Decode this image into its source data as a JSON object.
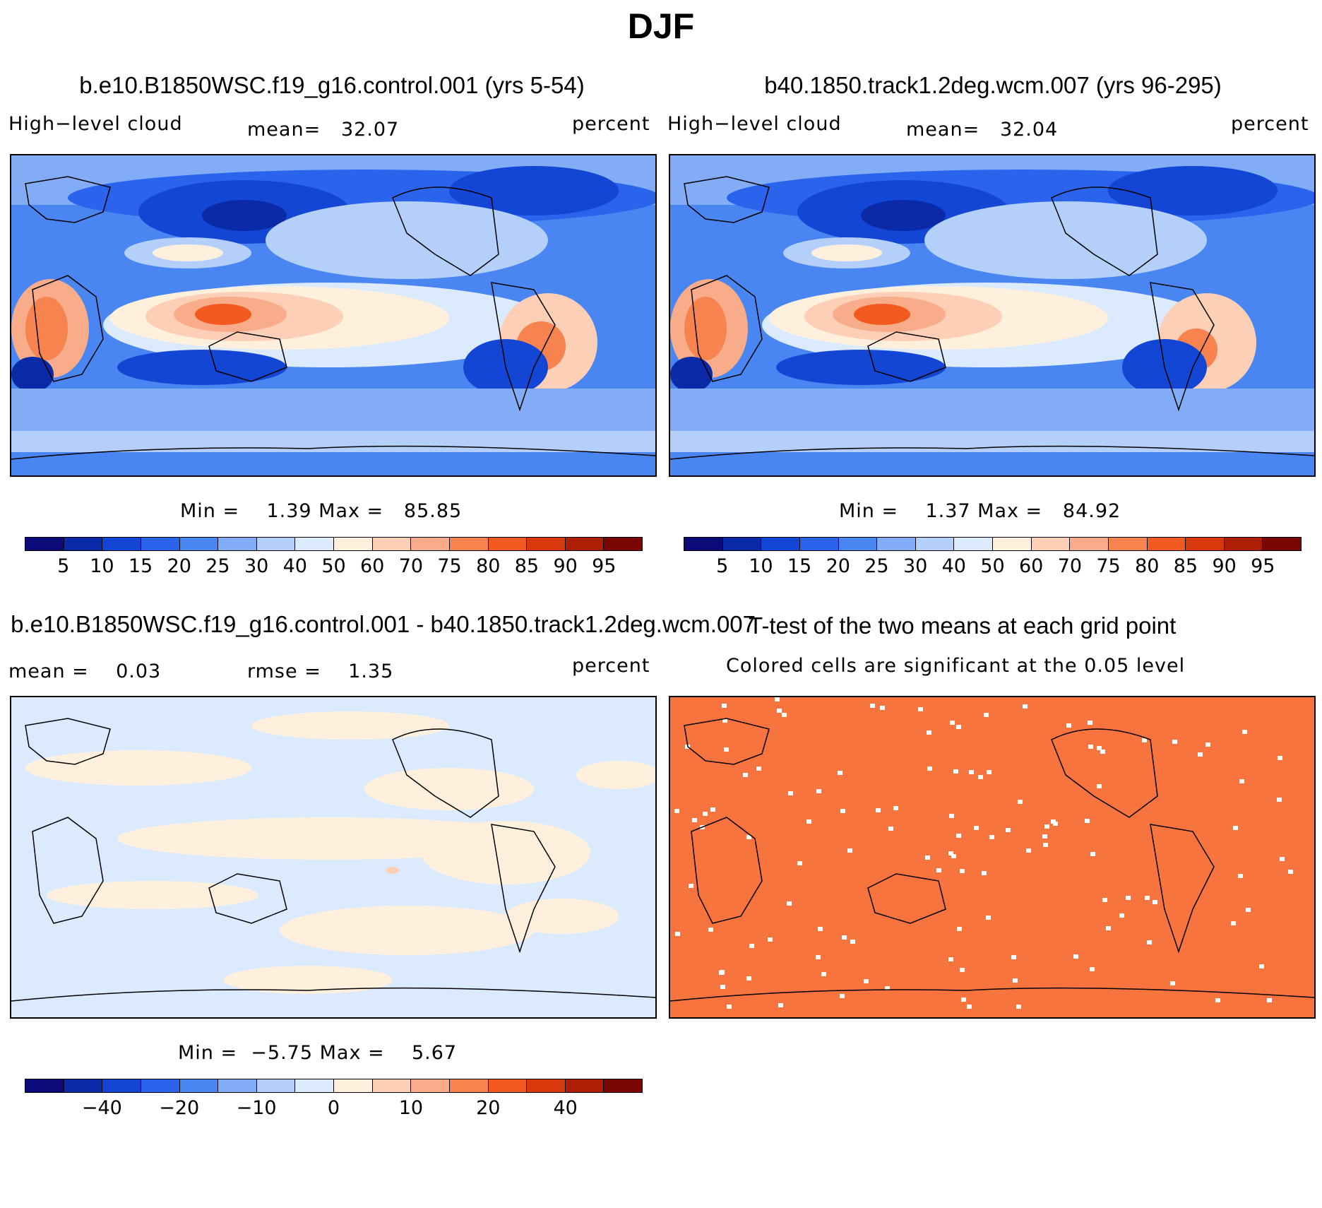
{
  "title": "DJF",
  "variable_label": "High−level cloud",
  "units_label": "percent",
  "panels": [
    {
      "title": "b.e10.B1850WSC.f19_g16.control.001 (yrs 5-54)",
      "mean_label": "mean=   32.07",
      "minmax_label": "Min =    1.39 Max =   85.85"
    },
    {
      "title": "b40.1850.track1.2deg.wcm.007 (yrs 96-295)",
      "mean_label": "mean=   32.04",
      "minmax_label": "Min =    1.37 Max =   84.92"
    },
    {
      "title": "b.e10.B1850WSC.f19_g16.control.001 - b40.1850.track1.2deg.wcm.007",
      "mean_label": "mean =    0.03",
      "rmse_label": "rmse =    1.35",
      "minmax_label": "Min =  −5.75 Max =    5.67"
    },
    {
      "title": "T-test of the two means at each grid point",
      "subtitle": "Colored cells are significant at the 0.05 level"
    }
  ],
  "colorbar_abs": {
    "colors": [
      "#0a0a78",
      "#0a2aa8",
      "#1446d6",
      "#2a64ec",
      "#4a86f2",
      "#82acf6",
      "#b4cffa",
      "#dceafe",
      "#fff0de",
      "#fccfb6",
      "#f9ac8a",
      "#f7844f",
      "#f25a20",
      "#d8390c",
      "#ac1f06",
      "#7a0606"
    ],
    "tick_labels": [
      "5",
      "10",
      "15",
      "20",
      "25",
      "30",
      "40",
      "50",
      "60",
      "70",
      "75",
      "80",
      "85",
      "90",
      "95"
    ]
  },
  "colorbar_diff": {
    "colors": [
      "#0a0a78",
      "#0a2aa8",
      "#1446d6",
      "#2a64ec",
      "#4a86f2",
      "#82acf6",
      "#b4cffa",
      "#dceafe",
      "#fff0de",
      "#fccfb6",
      "#f9ac8a",
      "#f7844f",
      "#f25a20",
      "#d8390c",
      "#ac1f06",
      "#7a0606"
    ],
    "tick_labels": [
      "−40",
      "−20",
      "−10",
      "0",
      "10",
      "20",
      "40"
    ]
  },
  "chart_data": [
    {
      "type": "heatmap",
      "title": "b.e10.B1850WSC.f19_g16.control.001 (yrs 5-54)",
      "variable": "High-level cloud",
      "units": "percent",
      "mean": 32.07,
      "min": 1.39,
      "max": 85.85,
      "contour_levels": [
        5,
        10,
        15,
        20,
        25,
        30,
        40,
        50,
        60,
        70,
        75,
        80,
        85,
        90,
        95
      ]
    },
    {
      "type": "heatmap",
      "title": "b40.1850.track1.2deg.wcm.007 (yrs 96-295)",
      "variable": "High-level cloud",
      "units": "percent",
      "mean": 32.04,
      "min": 1.37,
      "max": 84.92,
      "contour_levels": [
        5,
        10,
        15,
        20,
        25,
        30,
        40,
        50,
        60,
        70,
        75,
        80,
        85,
        90,
        95
      ]
    },
    {
      "type": "heatmap",
      "title": "b.e10.B1850WSC.f19_g16.control.001 - b40.1850.track1.2deg.wcm.007",
      "units": "percent",
      "mean": 0.03,
      "rmse": 1.35,
      "min": -5.75,
      "max": 5.67,
      "contour_levels": [
        -40,
        -20,
        -10,
        0,
        10,
        20,
        40
      ]
    },
    {
      "type": "heatmap",
      "title": "T-test of the two means at each grid point",
      "note": "Colored cells are significant at the 0.05 level",
      "significance_level": 0.05
    }
  ]
}
